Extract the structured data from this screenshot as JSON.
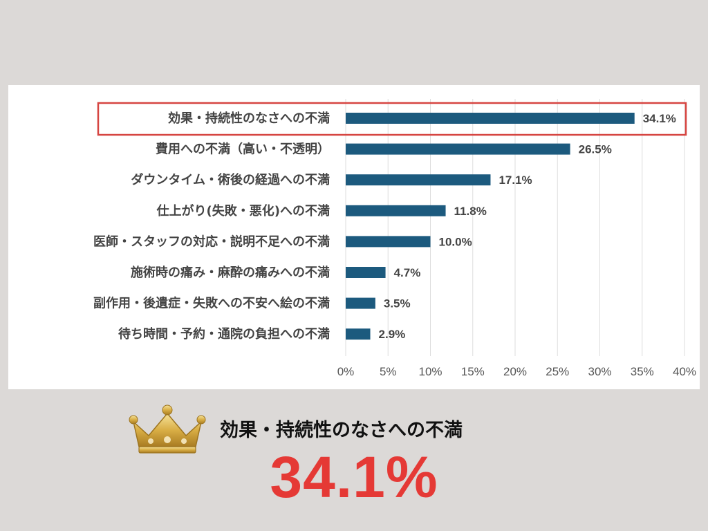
{
  "chart_data": {
    "type": "bar",
    "orientation": "horizontal",
    "categories": [
      "効果・持続性のなさへの不満",
      "費用への不満（高い・不透明）",
      "ダウンタイム・術後の経過への不満",
      "仕上がり(失敗・悪化)への不満",
      "医師・スタッフの対応・説明不足への不満",
      "施術時の痛み・麻酔の痛みへの不満",
      "副作用・後遺症・失敗への不安へ絵の不満",
      "待ち時間・予約・通院の負担への不満"
    ],
    "values": [
      34.1,
      26.5,
      17.1,
      11.8,
      10.0,
      4.7,
      3.5,
      2.9
    ],
    "value_labels": [
      "34.1%",
      "26.5%",
      "17.1%",
      "11.8%",
      "10.0%",
      "4.7%",
      "3.5%",
      "2.9%"
    ],
    "xlim": [
      0,
      40
    ],
    "x_ticks": [
      0,
      5,
      10,
      15,
      20,
      25,
      30,
      35,
      40
    ],
    "x_tick_labels": [
      "0%",
      "5%",
      "10%",
      "15%",
      "20%",
      "25%",
      "30%",
      "35%",
      "40%"
    ],
    "highlight_index": 0,
    "grid": true,
    "colors": {
      "bar": "#1c5a7e",
      "highlight_box": "#d64541",
      "grid": "#dddddd"
    }
  },
  "winner": {
    "label": "効果・持続性のなさへの不満",
    "value": "34.1%",
    "icon": "crown-icon",
    "value_color": "#e53935"
  }
}
